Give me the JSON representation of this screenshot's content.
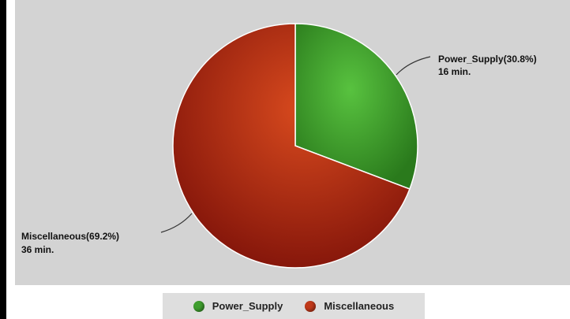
{
  "chart_data": {
    "type": "pie",
    "title": "",
    "unit": "min.",
    "slices": [
      {
        "label": "Power_Supply",
        "value": 16,
        "percent": 30.8,
        "label_line1": "Power_Supply(30.8%)",
        "label_line2": "16 min.",
        "color": "#3f9e2e"
      },
      {
        "label": "Miscellaneous",
        "value": 36,
        "percent": 69.2,
        "label_line1": "Miscellaneous(69.2%)",
        "label_line2": "36 min.",
        "color": "#c0391a"
      }
    ],
    "legend": {
      "position": "bottom",
      "items": [
        {
          "label": "Power_Supply",
          "color": "#3f9e2e"
        },
        {
          "label": "Miscellaneous",
          "color": "#c0391a"
        }
      ]
    }
  },
  "colors": {
    "panel_background": "#d3d3d3",
    "legend_background": "#dedede"
  }
}
